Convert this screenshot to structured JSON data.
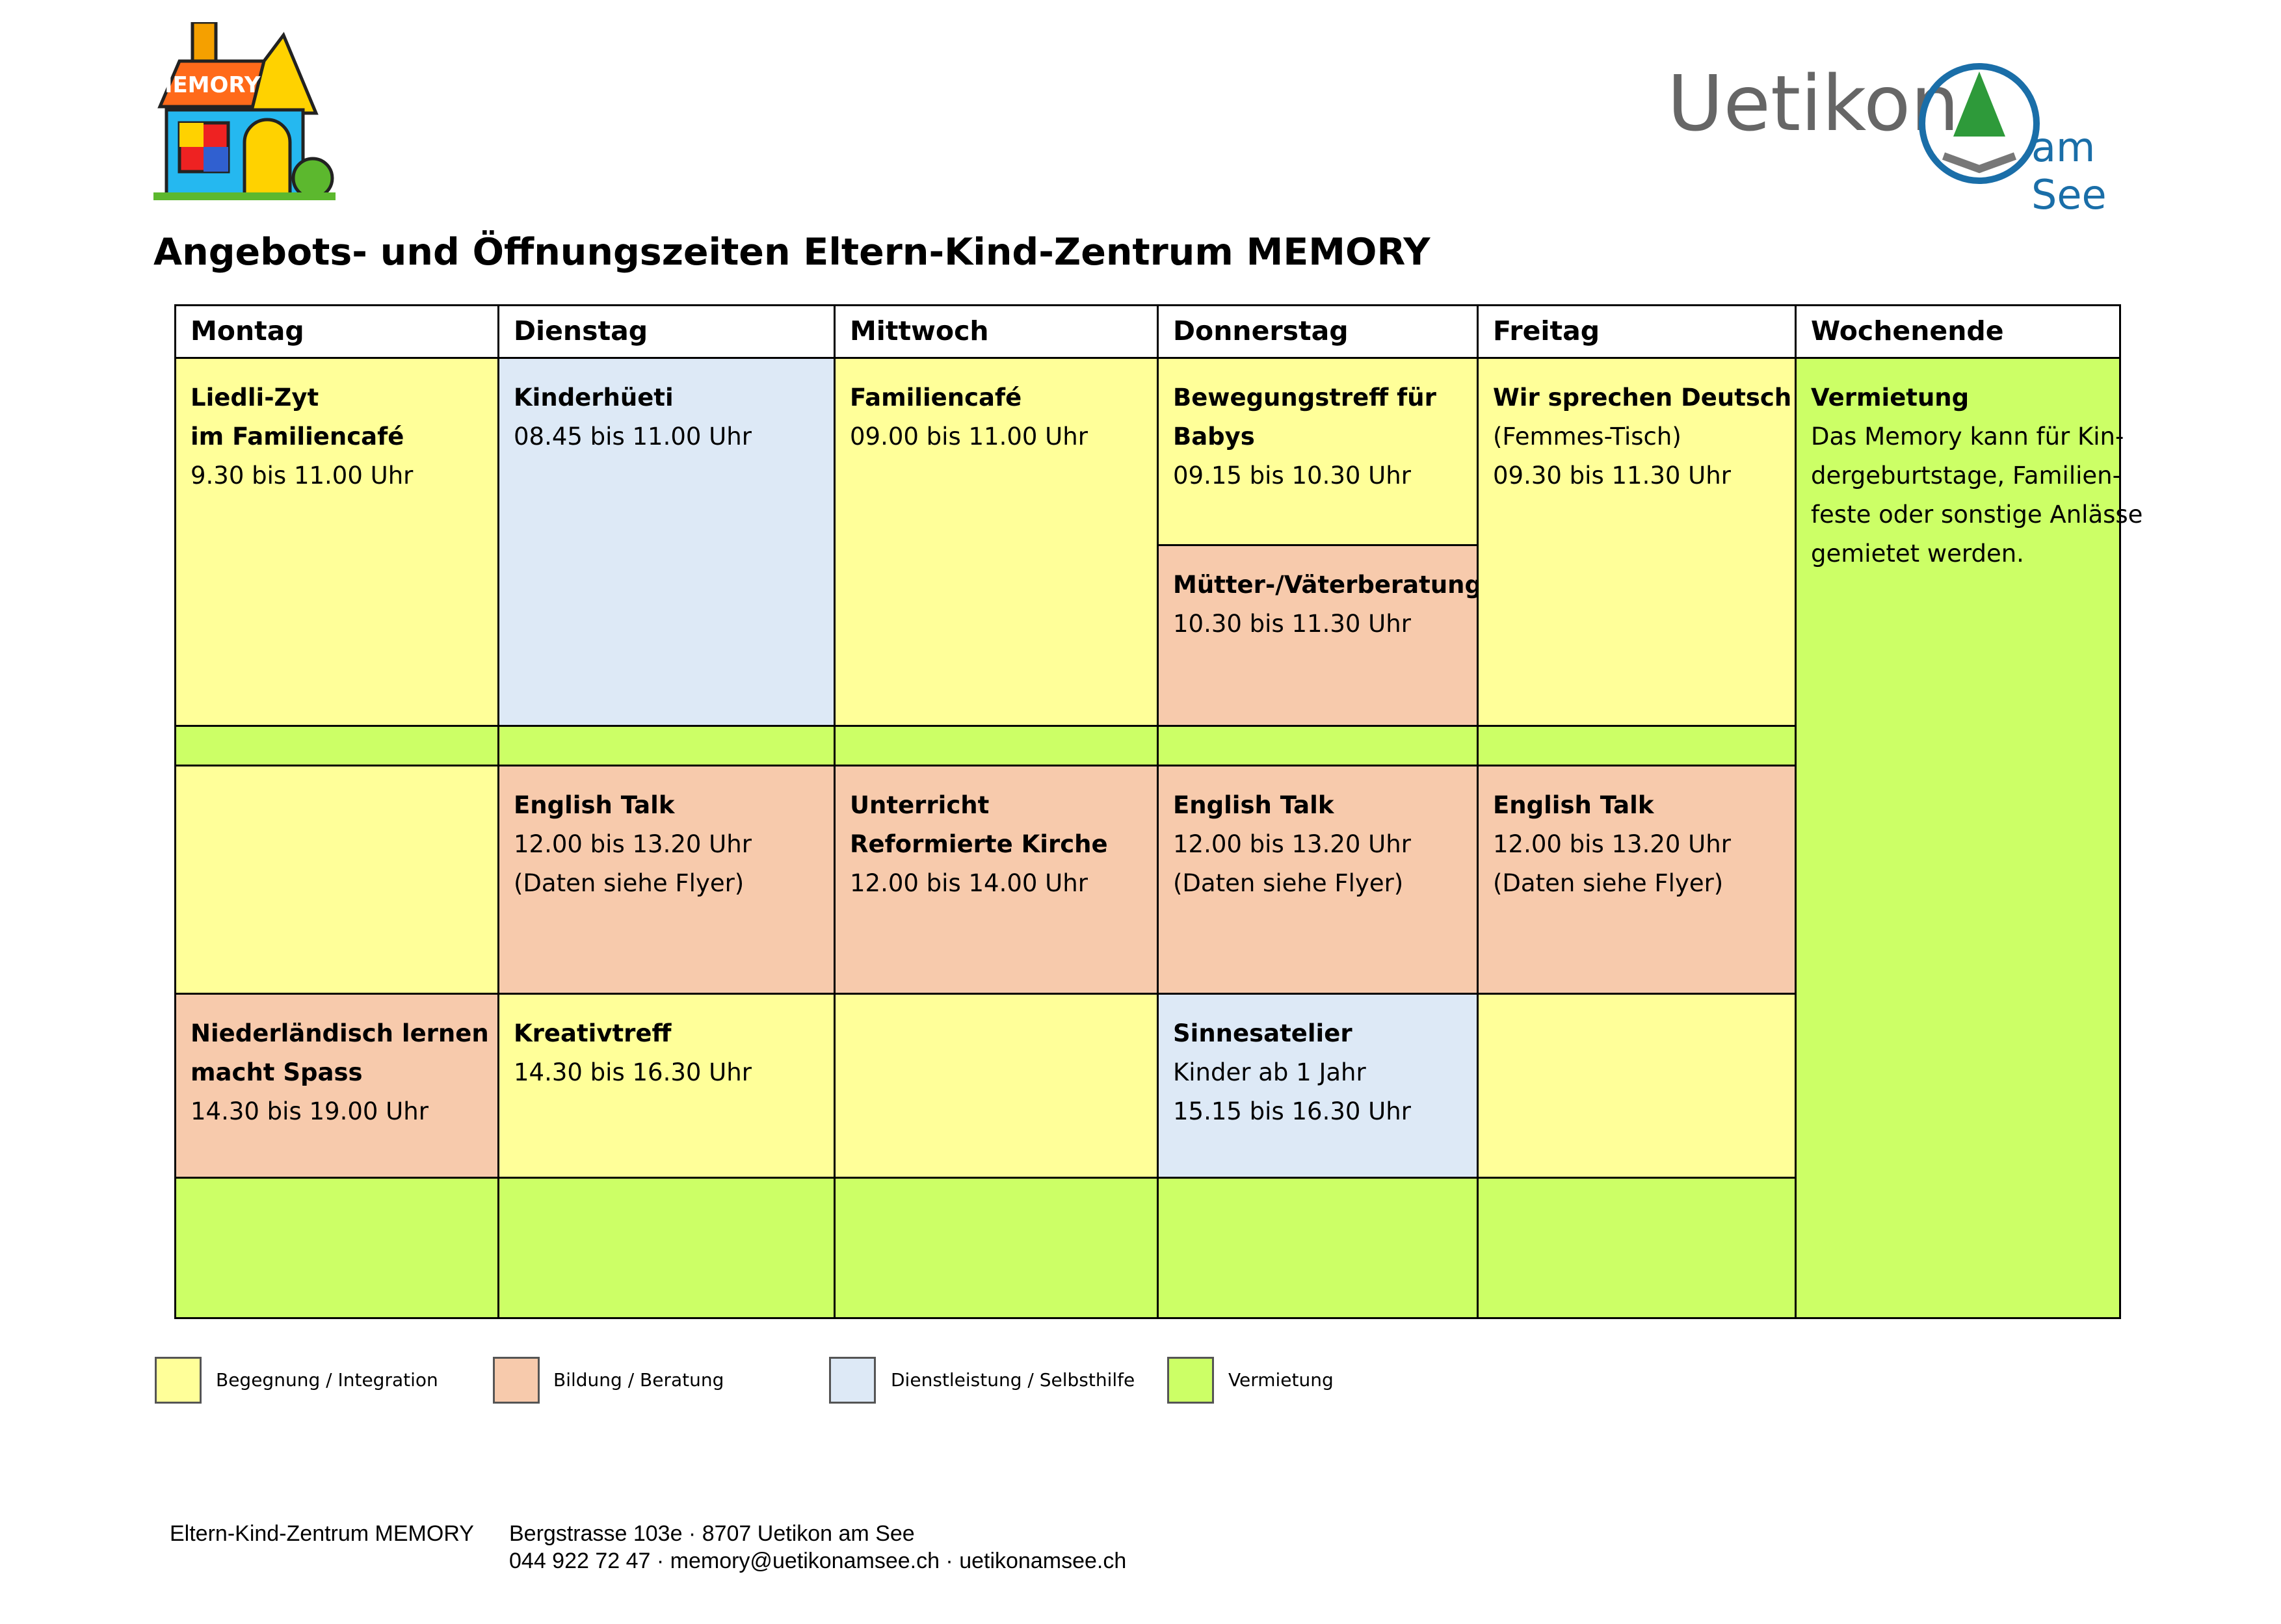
{
  "logo": {
    "sign": "MEMORY",
    "town": "Uetikon",
    "town_suffix": "am See"
  },
  "header": {
    "title": "Angebots- und Öffnungszeiten Eltern-Kind-Zentrum MEMORY"
  },
  "table": {
    "columns": [
      "Montag",
      "Dienstag",
      "Mittwoch",
      "Donnerstag",
      "Freitag",
      "Wochenende"
    ],
    "cells": [
      {
        "bold": [
          "Liedli-Zyt",
          "im Familiencafé"
        ],
        "text": [
          "9.30 bis 11.00 Uhr"
        ]
      },
      {
        "bold": [
          "Kinderhüeti"
        ],
        "text": [
          "08.45 bis 11.00 Uhr"
        ]
      },
      {
        "bold": [
          "Familiencafé"
        ],
        "text": [
          "09.00 bis 11.00 Uhr"
        ]
      },
      {
        "bold": [
          "Bewegungstreff für",
          "Babys"
        ],
        "text": [
          "09.15 bis 10.30 Uhr"
        ]
      },
      {
        "bold": [
          "Mütter-/Väterberatung"
        ],
        "text": [
          "10.30 bis 11.30 Uhr"
        ]
      },
      {
        "bold": [
          "Wir sprechen Deutsch"
        ],
        "text": [
          "(Femmes-Tisch)",
          "09.30 bis 11.30 Uhr"
        ]
      },
      {
        "bold": [
          "Vermietung"
        ],
        "text": [
          "Das Memory kann für Kin-",
          "dergeburtstage, Familien-",
          "feste oder sonstige Anlässe",
          "gemietet werden."
        ]
      },
      {
        "bold": [
          "English Talk"
        ],
        "text": [
          "12.00 bis 13.20 Uhr",
          "(Daten siehe Flyer)"
        ]
      },
      {
        "bold": [
          "Unterricht",
          "Reformierte Kirche"
        ],
        "text": [
          "12.00 bis 14.00 Uhr"
        ]
      },
      {
        "bold": [
          "English Talk"
        ],
        "text": [
          "12.00 bis 13.20 Uhr",
          "(Daten siehe Flyer)"
        ]
      },
      {
        "bold": [
          "English Talk"
        ],
        "text": [
          "12.00 bis 13.20 Uhr",
          "(Daten siehe Flyer)"
        ]
      },
      {
        "bold": [
          "Niederländisch lernen",
          "macht Spass"
        ],
        "text": [
          "14.30 bis 19.00 Uhr"
        ]
      },
      {
        "bold": [
          "Kreativtreff"
        ],
        "text": [
          "14.30 bis 16.30 Uhr"
        ]
      },
      {
        "bold": [
          "Sinnesatelier"
        ],
        "text": [
          "Kinder ab 1 Jahr",
          "15.15 bis 16.30 Uhr"
        ]
      }
    ]
  },
  "legend": [
    "Begegnung / Integration",
    "Bildung / Beratung",
    "Dienstleistung / Selbsthilfe",
    "Vermietung"
  ],
  "footer": {
    "name": "Eltern-Kind-Zentrum MEMORY",
    "address": "Bergstrasse 103e · 8707 Uetikon am See",
    "contact": "044 922 72 47 · memory@uetikonamsee.ch · uetikonamsee.ch"
  }
}
